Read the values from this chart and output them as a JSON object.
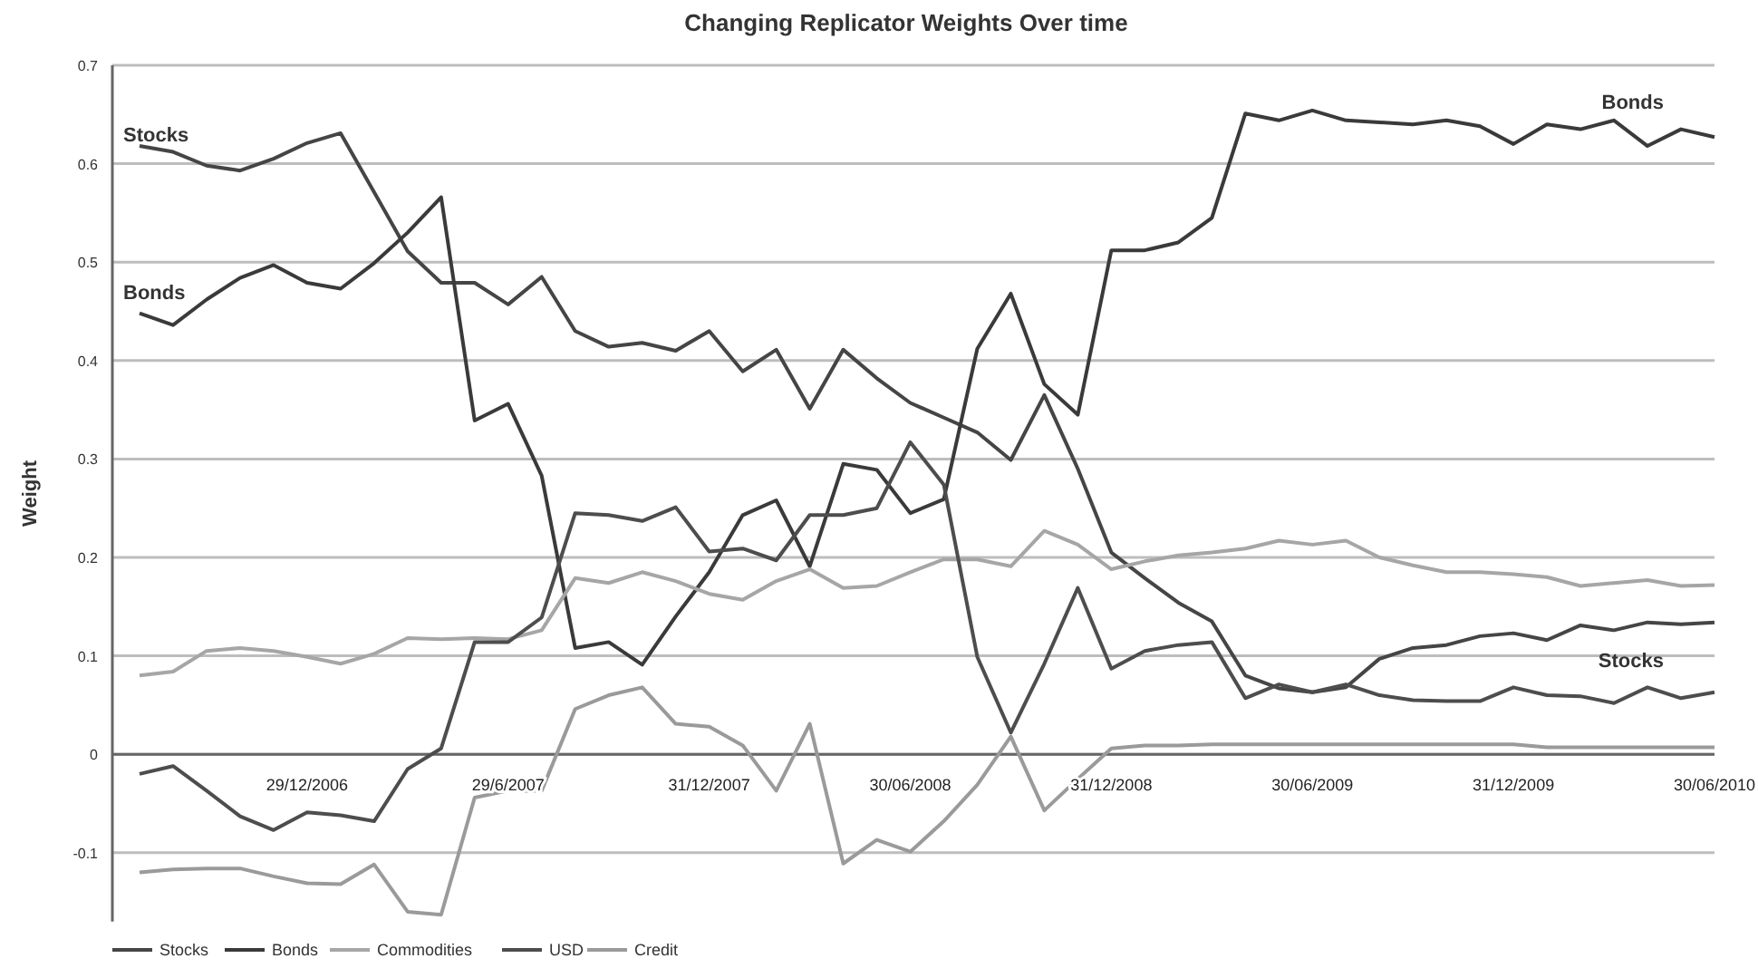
{
  "chart_data": {
    "type": "line",
    "title": "Changing Replicator Weights Over time",
    "ylabel": "Weight",
    "categories": [
      null,
      null,
      null,
      null,
      null,
      "29/12/2006",
      null,
      null,
      null,
      null,
      null,
      "29/6/2007",
      null,
      null,
      null,
      null,
      null,
      "31/12/2007",
      null,
      null,
      null,
      null,
      null,
      "30/06/2008",
      null,
      null,
      null,
      null,
      null,
      "31/12/2008",
      null,
      null,
      null,
      null,
      null,
      "30/06/2009",
      null,
      null,
      null,
      null,
      null,
      "31/12/2009",
      null,
      null,
      null,
      null,
      null,
      "30/06/2010"
    ],
    "series": [
      {
        "name": "Stocks",
        "color": "#454545",
        "values": [
          0.618,
          0.612,
          0.598,
          0.593,
          0.605,
          0.621,
          0.631,
          0.571,
          0.511,
          0.479,
          0.479,
          0.457,
          0.485,
          0.43,
          0.414,
          0.418,
          0.41,
          0.43,
          0.389,
          0.411,
          0.351,
          0.411,
          0.382,
          0.357,
          0.342,
          0.327,
          0.299,
          0.365,
          0.29,
          0.205,
          0.179,
          0.154,
          0.135,
          0.08,
          0.067,
          0.063,
          0.068,
          0.097,
          0.108,
          0.111,
          0.12,
          0.123,
          0.116,
          0.131,
          0.126,
          0.134,
          0.132,
          0.134
        ]
      },
      {
        "name": "Bonds",
        "color": "#3a3a3a",
        "values": [
          0.448,
          0.436,
          0.462,
          0.484,
          0.497,
          0.479,
          0.473,
          0.499,
          0.53,
          0.566,
          0.339,
          0.356,
          0.283,
          0.108,
          0.114,
          0.091,
          0.14,
          0.185,
          0.243,
          0.258,
          0.191,
          0.295,
          0.289,
          0.245,
          0.259,
          0.412,
          0.468,
          0.376,
          0.345,
          0.512,
          0.512,
          0.52,
          0.545,
          0.651,
          0.644,
          0.654,
          0.644,
          0.642,
          0.64,
          0.644,
          0.638,
          0.62,
          0.64,
          0.635,
          0.644,
          0.618,
          0.635,
          0.627
        ]
      },
      {
        "name": "Commodities",
        "color": "#a6a6a6",
        "values": [
          0.08,
          0.084,
          0.105,
          0.108,
          0.105,
          0.099,
          0.092,
          0.102,
          0.118,
          0.117,
          0.118,
          0.117,
          0.126,
          0.179,
          0.174,
          0.185,
          0.176,
          0.163,
          0.157,
          0.176,
          0.188,
          0.169,
          0.171,
          0.185,
          0.198,
          0.198,
          0.191,
          0.227,
          0.213,
          0.188,
          0.196,
          0.202,
          0.205,
          0.209,
          0.217,
          0.213,
          0.217,
          0.2,
          0.192,
          0.185,
          0.185,
          0.183,
          0.18,
          0.171,
          0.174,
          0.177,
          0.171,
          0.172
        ]
      },
      {
        "name": "USD",
        "color": "#4d4d4d",
        "values": [
          -0.02,
          -0.012,
          -0.037,
          -0.063,
          -0.077,
          -0.059,
          -0.062,
          -0.068,
          -0.015,
          0.006,
          0.114,
          0.114,
          0.139,
          0.245,
          0.243,
          0.237,
          0.251,
          0.206,
          0.209,
          0.197,
          0.243,
          0.243,
          0.25,
          0.317,
          0.274,
          0.099,
          0.022,
          0.092,
          0.169,
          0.087,
          0.105,
          0.111,
          0.114,
          0.057,
          0.071,
          0.063,
          0.071,
          0.06,
          0.055,
          0.054,
          0.054,
          0.068,
          0.06,
          0.059,
          0.052,
          0.068,
          0.057,
          0.063
        ]
      },
      {
        "name": "Credit",
        "color": "#9a9a9a",
        "values": [
          -0.12,
          -0.117,
          -0.116,
          -0.116,
          -0.124,
          -0.131,
          -0.132,
          -0.112,
          -0.16,
          -0.163,
          -0.044,
          -0.037,
          -0.037,
          0.046,
          0.06,
          0.068,
          0.031,
          0.028,
          0.009,
          -0.037,
          0.031,
          -0.111,
          -0.087,
          -0.099,
          -0.068,
          -0.031,
          0.018,
          -0.057,
          -0.025,
          0.006,
          0.009,
          0.009,
          0.01,
          0.01,
          0.01,
          0.01,
          0.01,
          0.01,
          0.01,
          0.01,
          0.01,
          0.01,
          0.007,
          0.007,
          0.007,
          0.007,
          0.007,
          0.007
        ]
      }
    ],
    "ylim": [
      -0.17,
      0.7
    ],
    "yticks": [
      -0.1,
      0,
      0.1,
      0.2,
      0.3,
      0.4,
      0.5,
      0.6,
      0.7
    ],
    "grid": "y",
    "legend": "bottom left",
    "marker": "none",
    "line_style": "solid",
    "annotations": [
      "Stocks",
      "Bonds",
      "Bonds",
      "Stocks"
    ]
  }
}
